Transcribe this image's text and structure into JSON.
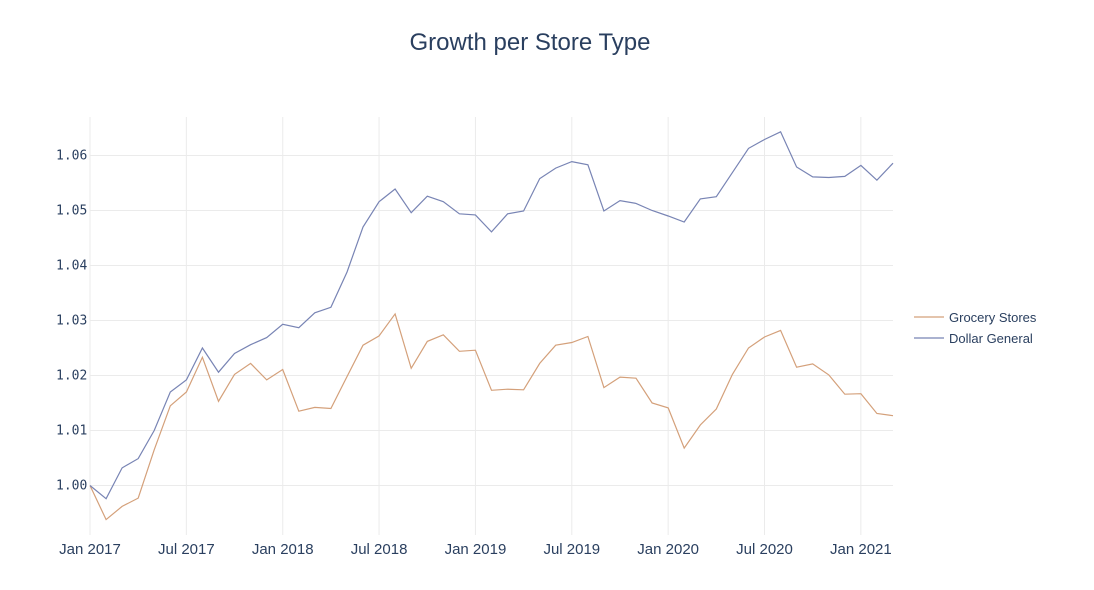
{
  "chart_data": {
    "type": "line",
    "title": "Growth per Store Type",
    "xlabel": "",
    "ylabel": "",
    "x": [
      "2017-01",
      "2017-02",
      "2017-03",
      "2017-04",
      "2017-05",
      "2017-06",
      "2017-07",
      "2017-08",
      "2017-09",
      "2017-10",
      "2017-11",
      "2017-12",
      "2018-01",
      "2018-02",
      "2018-03",
      "2018-04",
      "2018-05",
      "2018-06",
      "2018-07",
      "2018-08",
      "2018-09",
      "2018-10",
      "2018-11",
      "2018-12",
      "2019-01",
      "2019-02",
      "2019-03",
      "2019-04",
      "2019-05",
      "2019-06",
      "2019-07",
      "2019-08",
      "2019-09",
      "2019-10",
      "2019-11",
      "2019-12",
      "2020-01",
      "2020-02",
      "2020-03",
      "2020-04",
      "2020-05",
      "2020-06",
      "2020-07",
      "2020-08",
      "2020-09",
      "2020-10",
      "2020-11",
      "2020-12",
      "2021-01",
      "2021-02",
      "2021-03"
    ],
    "xrange": [
      "2017-01",
      "2021-03"
    ],
    "ylim": [
      0.991,
      1.067
    ],
    "yticks": [
      1.0,
      1.01,
      1.02,
      1.03,
      1.04,
      1.05,
      1.06
    ],
    "ytick_labels": [
      "1.00",
      "1.01",
      "1.02",
      "1.03",
      "1.04",
      "1.05",
      "1.06"
    ],
    "xticks": [
      "2017-01",
      "2017-07",
      "2018-01",
      "2018-07",
      "2019-01",
      "2019-07",
      "2020-01",
      "2020-07",
      "2021-01"
    ],
    "xtick_labels": [
      "Jan 2017",
      "Jul 2017",
      "Jan 2018",
      "Jul 2018",
      "Jan 2019",
      "Jul 2019",
      "Jan 2020",
      "Jul 2020",
      "Jan 2021"
    ],
    "grid": true,
    "legend_position": "right",
    "series": [
      {
        "name": "Grocery Stores",
        "color": "#d4a07a",
        "values": [
          1.0,
          0.9938,
          0.9962,
          0.9977,
          1.0065,
          1.0145,
          1.017,
          1.0233,
          1.0153,
          1.0202,
          1.0222,
          1.0192,
          1.0211,
          1.0135,
          1.0142,
          1.014,
          1.0198,
          1.0255,
          1.0272,
          1.0312,
          1.0213,
          1.0262,
          1.0274,
          1.0244,
          1.0246,
          1.0173,
          1.0175,
          1.0174,
          1.0222,
          1.0255,
          1.026,
          1.0271,
          1.0178,
          1.0197,
          1.0195,
          1.015,
          1.0141,
          1.0068,
          1.011,
          1.0139,
          1.0202,
          1.025,
          1.027,
          1.0282,
          1.0215,
          1.0221,
          1.0201,
          1.0166,
          1.0167,
          1.0131,
          1.0127
        ]
      },
      {
        "name": "Dollar General",
        "color": "#7884b4",
        "values": [
          1.0,
          0.9976,
          1.0032,
          1.0049,
          1.01,
          1.017,
          1.0192,
          1.025,
          1.0206,
          1.024,
          1.0256,
          1.0269,
          1.0293,
          1.0287,
          1.0314,
          1.0324,
          1.0388,
          1.047,
          1.0516,
          1.0539,
          1.0496,
          1.0526,
          1.0516,
          1.0494,
          1.0492,
          1.0461,
          1.0494,
          1.0499,
          1.0558,
          1.0577,
          1.0589,
          1.0583,
          1.0499,
          1.0518,
          1.0513,
          1.05,
          1.049,
          1.0479,
          1.0521,
          1.0525,
          1.0569,
          1.0613,
          1.0629,
          1.0643,
          1.0579,
          1.0561,
          1.056,
          1.0562,
          1.0582,
          1.0555,
          1.0586
        ]
      }
    ]
  }
}
